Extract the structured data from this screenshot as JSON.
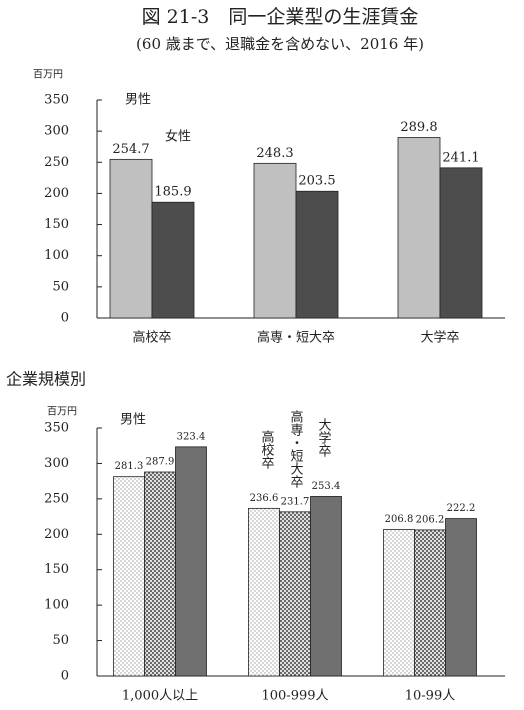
{
  "chart_data": [
    {
      "type": "bar",
      "title": "図 21-3　同一企業型の生涯賃金",
      "subtitle": "(60 歳まで、退職金を含めない、2016 年)",
      "unit": "百万円",
      "categories": [
        "高校卒",
        "高専・短大卒",
        "大学卒"
      ],
      "series": [
        {
          "name": "男性",
          "color": "#c0c0c0",
          "values": [
            254.7,
            248.3,
            289.8
          ]
        },
        {
          "name": "女性",
          "color": "#4d4d4d",
          "values": [
            185.9,
            203.5,
            241.1
          ]
        }
      ],
      "ylim": [
        0,
        350
      ],
      "yticks": [
        0,
        50,
        100,
        150,
        200,
        250,
        300,
        350
      ]
    },
    {
      "type": "bar",
      "title": "企業規模別",
      "unit": "百万円",
      "annotation": "男性",
      "categories": [
        "1,000人以上",
        "100-999人",
        "10-99人"
      ],
      "series": [
        {
          "name": "高校卒",
          "color": "#9a9a9a",
          "pattern": "dots",
          "values": [
            281.3,
            236.6,
            206.8
          ]
        },
        {
          "name": "高専・短大卒",
          "color": "#6a6a6a",
          "pattern": "crosshatch",
          "values": [
            287.9,
            231.7,
            206.2
          ]
        },
        {
          "name": "大学卒",
          "color": "#707070",
          "values": [
            323.4,
            253.4,
            222.2
          ]
        }
      ],
      "ylim": [
        0,
        350
      ],
      "yticks": [
        0,
        50,
        100,
        150,
        200,
        250,
        300,
        350
      ]
    }
  ]
}
